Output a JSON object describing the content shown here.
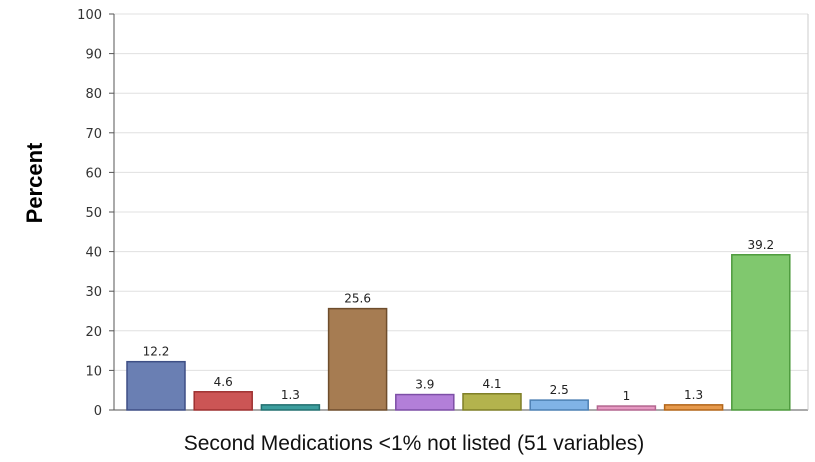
{
  "chart_data": {
    "type": "bar",
    "title": "",
    "ylabel": "Percent",
    "xlabel": "Second Medications <1% not listed (51 variables)",
    "ylim": [
      0,
      100
    ],
    "yticks": [
      0,
      10,
      20,
      30,
      40,
      50,
      60,
      70,
      80,
      90,
      100
    ],
    "grid": true,
    "values": [
      12.2,
      4.6,
      1.3,
      25.6,
      3.9,
      4.1,
      2.5,
      1,
      1.3,
      39.2
    ],
    "value_labels": [
      "12.2",
      "4.6",
      "1.3",
      "25.6",
      "3.9",
      "4.1",
      "2.5",
      "1",
      "1.3",
      "39.2"
    ],
    "colors": [
      "#6a7fb3",
      "#cc5555",
      "#3d9e9e",
      "#a67c52",
      "#b37fd9",
      "#b3b34d",
      "#80b3e6",
      "#e699c2",
      "#e69a4d",
      "#80c86e"
    ],
    "stroke_colors": [
      "#3e4f85",
      "#9e3030",
      "#237070",
      "#6e4d2c",
      "#7d4fa6",
      "#7f7f26",
      "#4d80b3",
      "#b3668f",
      "#b36619",
      "#4d9a3d"
    ]
  }
}
